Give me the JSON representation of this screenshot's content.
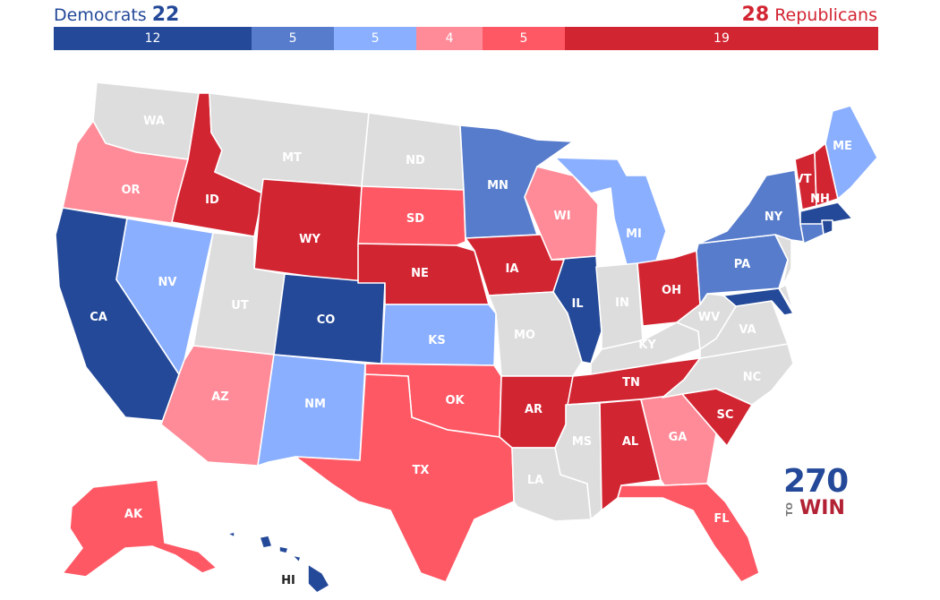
{
  "header": {
    "dem_label": "Democrats",
    "dem_total": "22",
    "rep_total": "28",
    "rep_label": "Republicans"
  },
  "tally": [
    {
      "value": "12",
      "share": 12,
      "color": "#244999"
    },
    {
      "value": "5",
      "share": 5,
      "color": "#577ccc"
    },
    {
      "value": "5",
      "share": 5,
      "color": "#8aafff"
    },
    {
      "value": "4",
      "share": 4,
      "color": "#ff8b98"
    },
    {
      "value": "5",
      "share": 5,
      "color": "#ff5865"
    },
    {
      "value": "19",
      "share": 19,
      "color": "#d22532"
    }
  ],
  "colors": {
    "safe_d": "#244999",
    "likely_d": "#577ccc",
    "lean_d": "#8aafff",
    "lean_r": "#ff8b98",
    "likely_r": "#ff5865",
    "safe_r": "#d22532",
    "no_race": "#dddddd"
  },
  "states": {
    "WA": "WA",
    "OR": "OR",
    "CA": "CA",
    "ID": "ID",
    "NV": "NV",
    "MT": "MT",
    "WY": "WY",
    "UT": "UT",
    "AZ": "AZ",
    "CO": "CO",
    "NM": "NM",
    "ND": "ND",
    "SD": "SD",
    "NE": "NE",
    "KS": "KS",
    "OK": "OK",
    "TX": "TX",
    "MN": "MN",
    "IA": "IA",
    "MO": "MO",
    "AR": "AR",
    "LA": "LA",
    "WI": "WI",
    "IL": "IL",
    "MI": "MI",
    "IN": "IN",
    "OH": "OH",
    "KY": "KY",
    "TN": "TN",
    "MS": "MS",
    "AL": "AL",
    "GA": "GA",
    "FL": "FL",
    "SC": "SC",
    "NC": "NC",
    "VA": "VA",
    "WV": "WV",
    "PA": "PA",
    "NY": "NY",
    "VT": "VT",
    "NH": "NH",
    "ME": "ME",
    "AK": "AK",
    "HI": "HI"
  },
  "logo": {
    "number": "270",
    "to": "TO",
    "win": "WIN"
  }
}
